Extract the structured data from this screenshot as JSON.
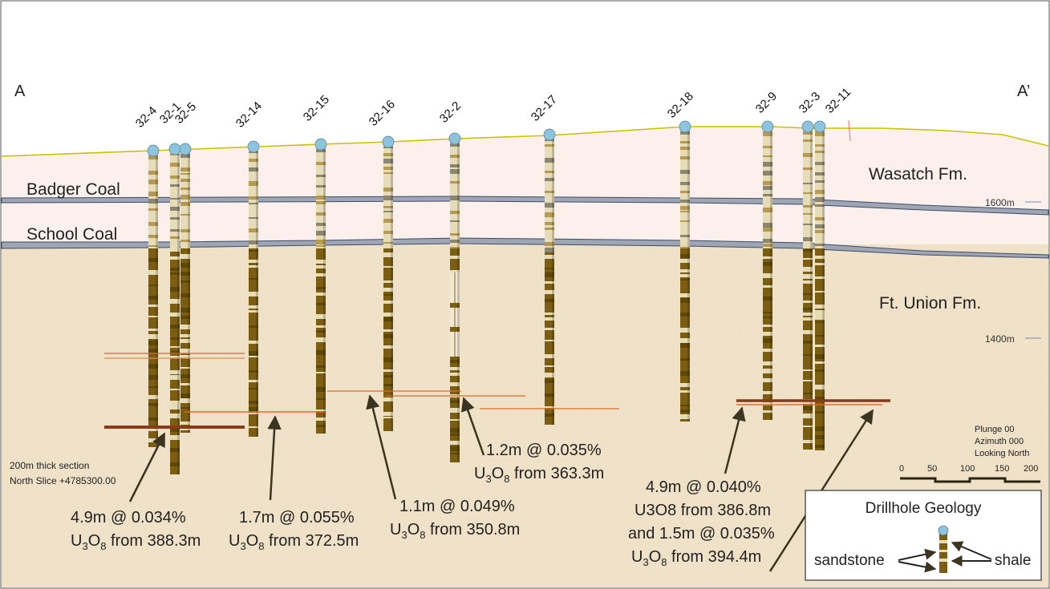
{
  "section": {
    "left_end": "A",
    "right_end": "A’",
    "thickness_note": "200m thick section",
    "slice_note": "North Slice +4785300.00"
  },
  "formations": {
    "upper": "Wasatch Fm.",
    "lower": "Ft. Union Fm.",
    "coal_1": "Badger Coal",
    "coal_2": "School Coal"
  },
  "elevations": [
    {
      "label": "1600m",
      "value": 1600
    },
    {
      "label": "1400m",
      "value": 1400
    }
  ],
  "view": {
    "plunge": "Plunge 00",
    "azimuth": "Azimuth 000",
    "looking": "Looking North"
  },
  "scale_bar": {
    "ticks": [
      "0",
      "50",
      "100",
      "150",
      "200"
    ]
  },
  "drillholes": [
    {
      "id": "32-4"
    },
    {
      "id": "32-1"
    },
    {
      "id": "32-5"
    },
    {
      "id": "32-14"
    },
    {
      "id": "32-15"
    },
    {
      "id": "32-16"
    },
    {
      "id": "32-2"
    },
    {
      "id": "32-17"
    },
    {
      "id": "32-18"
    },
    {
      "id": "32-9"
    },
    {
      "id": "32-3"
    },
    {
      "id": "32-11"
    }
  ],
  "intercepts": [
    {
      "line1_pre": "4.9m @ 0.034%",
      "u": "U",
      "sub1": "3",
      "o": "O",
      "sub2": "8",
      "tail": " from 388.3m"
    },
    {
      "line1_pre": "1.7m @ 0.055%",
      "u": "U",
      "sub1": "3",
      "o": "O",
      "sub2": "8",
      "tail": " from 372.5m"
    },
    {
      "line1_pre": "1.1m @ 0.049%",
      "u": "U",
      "sub1": "3",
      "o": "O",
      "sub2": "8",
      "tail": " from 350.8m"
    },
    {
      "line1_pre": "1.2m @ 0.035%",
      "u": "U",
      "sub1": "3",
      "o": "O",
      "sub2": "8",
      "tail": " from 363.3m"
    }
  ],
  "intercept_multi": {
    "line1": "4.9m @ 0.040%",
    "line2": "U3O8 from 386.8m",
    "line3": "and 1.5m @ 0.035%",
    "line4_u": "U",
    "line4_sub1": "3",
    "line4_o": "O",
    "line4_sub2": "8",
    "line4_tail": " from 394.4m"
  },
  "legend": {
    "title": "Drillhole Geology",
    "sandstone": "sandstone",
    "shale": "shale"
  },
  "colors": {
    "wasatch": "#fbf0ec",
    "ft_union": "#f0e2c8",
    "coal": "#9ea6b4",
    "hole_dark": "#7b5e12",
    "hole_light": "#e7dcb8",
    "intercept": "#e06a2a",
    "collar": "#8cc4de"
  }
}
